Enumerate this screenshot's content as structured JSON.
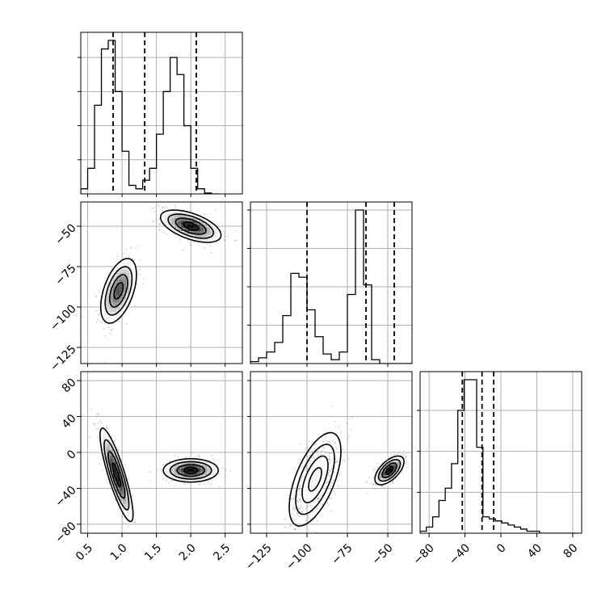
{
  "chart_data": {
    "type": "corner",
    "title": "",
    "parameters": [
      {
        "label": "",
        "range": [
          0.4,
          2.75
        ],
        "ticks": [
          "0.5",
          "1.0",
          "1.5",
          "2.0",
          "2.5"
        ],
        "tick_values": [
          0.5,
          1.0,
          1.5,
          2.0,
          2.5
        ],
        "quantiles": [
          0.87,
          1.33,
          2.08
        ]
      },
      {
        "label": "",
        "range": [
          -135,
          -35
        ],
        "ticks": [
          "−125",
          "−100",
          "−75",
          "−50"
        ],
        "tick_values": [
          -125,
          -100,
          -75,
          -50
        ],
        "quantiles": [
          -100,
          -63.5,
          -46
        ]
      },
      {
        "label": "",
        "range": [
          -90,
          90
        ],
        "ticks": [
          "−80",
          "−40",
          "0",
          "40",
          "80"
        ],
        "tick_values": [
          -80,
          -40,
          0,
          40,
          80
        ],
        "quantiles": [
          -43,
          -21,
          -8
        ]
      }
    ],
    "histograms": [
      {
        "param": 0,
        "bin_width": 0.1,
        "bin_start": 0.4,
        "counts": [
          0.03,
          0.15,
          0.52,
          0.85,
          0.9,
          0.6,
          0.25,
          0.05,
          0.03,
          0.08,
          0.15,
          0.35,
          0.6,
          0.8,
          0.7,
          0.4,
          0.15,
          0.03,
          0.005,
          0.0
        ]
      },
      {
        "param": 1,
        "bin_width": 5,
        "bin_start": -135,
        "counts": [
          0.01,
          0.03,
          0.06,
          0.11,
          0.25,
          0.47,
          0.45,
          0.28,
          0.14,
          0.05,
          0.02,
          0.06,
          0.36,
          0.8,
          0.41,
          0.02,
          0.0,
          0.0,
          0.0,
          0.0
        ]
      },
      {
        "param": 2,
        "bin_width": 7,
        "bin_start": -90,
        "counts": [
          0.01,
          0.03,
          0.08,
          0.16,
          0.22,
          0.34,
          0.6,
          0.75,
          0.75,
          0.42,
          0.08,
          0.07,
          0.06,
          0.05,
          0.04,
          0.03,
          0.02,
          0.01,
          0.01,
          0.0,
          0.0,
          0.0,
          0.0,
          0.0,
          0.0
        ]
      }
    ],
    "pair_densities": [
      {
        "x_param": 0,
        "y_param": 1,
        "clusters": [
          {
            "cx": 0.95,
            "cy": -90,
            "sx": 0.13,
            "sy": 10,
            "rho": 0.5,
            "weight": 0.5
          },
          {
            "cx": 2.0,
            "cy": -50,
            "sx": 0.22,
            "sy": 5,
            "rho": -0.55,
            "weight": 0.5
          }
        ]
      },
      {
        "x_param": 0,
        "y_param": 2,
        "clusters": [
          {
            "cx": 0.92,
            "cy": -25,
            "sx": 0.12,
            "sy": 26,
            "rho": -0.85,
            "weight": 0.55
          },
          {
            "cx": 2.0,
            "cy": -20,
            "sx": 0.2,
            "sy": 6.5,
            "rho": 0.0,
            "weight": 0.45
          }
        ]
      },
      {
        "x_param": 1,
        "y_param": 2,
        "clusters": [
          {
            "cx": -95,
            "cy": -30,
            "sx": 8,
            "sy": 26,
            "rho": 0.6,
            "weight": 0.55
          },
          {
            "cx": -49,
            "cy": -20,
            "sx": 4.5,
            "sy": 8,
            "rho": 0.6,
            "weight": 0.45
          }
        ]
      }
    ],
    "grid": true,
    "colors": {
      "line": "#000000",
      "grid": "#b0b0b0",
      "points": "#777777",
      "density_max": "#000000"
    }
  }
}
